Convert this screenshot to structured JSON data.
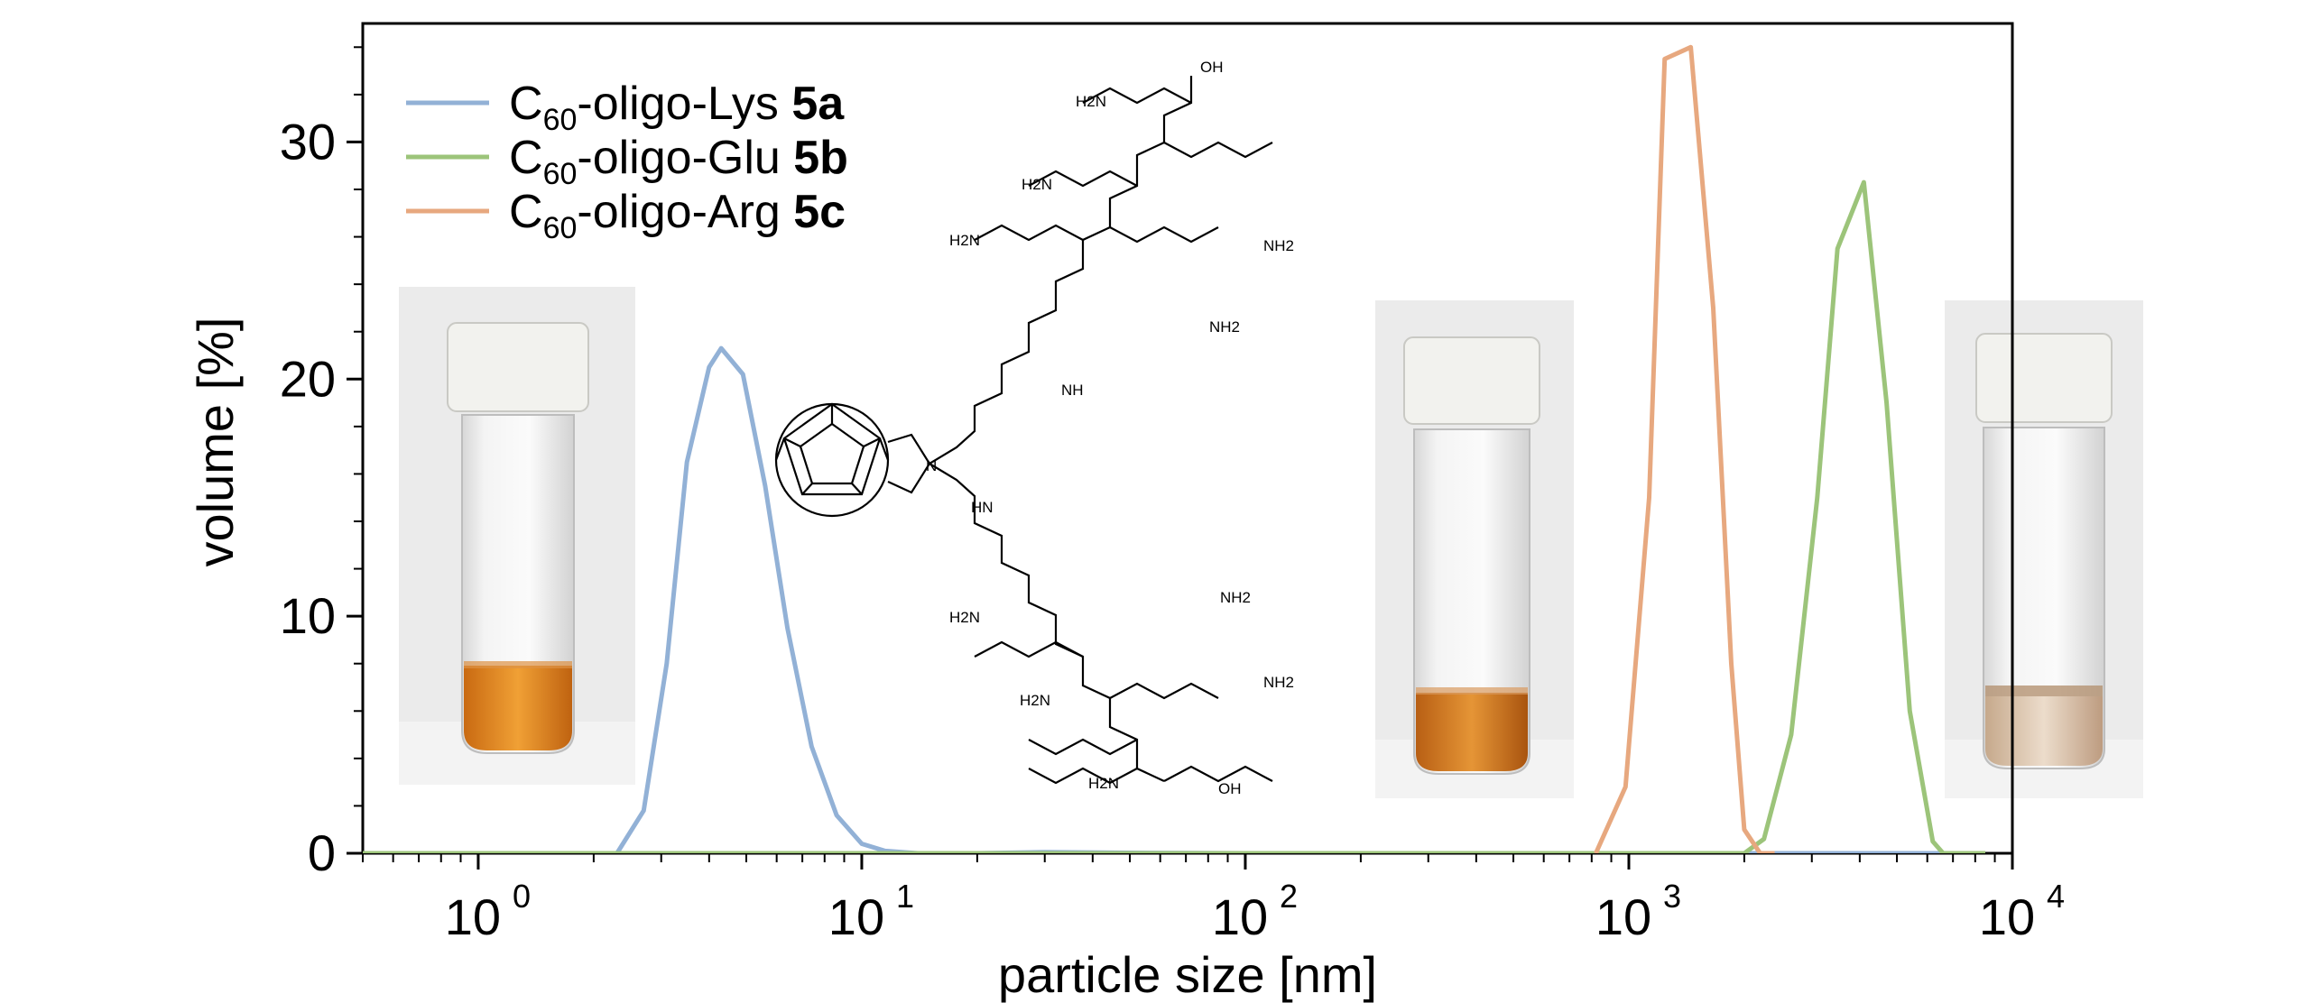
{
  "chart_data": {
    "type": "line",
    "xlabel": "particle size [nm]",
    "ylabel": "volume [%]",
    "xscale": "log",
    "xlim": [
      0.5,
      10000
    ],
    "ylim": [
      0,
      35
    ],
    "x_ticks": [
      {
        "value": 1,
        "base": "10",
        "exp": "0"
      },
      {
        "value": 10,
        "base": "10",
        "exp": "1"
      },
      {
        "value": 100,
        "base": "10",
        "exp": "2"
      },
      {
        "value": 1000,
        "base": "10",
        "exp": "3"
      },
      {
        "value": 10000,
        "base": "10",
        "exp": "4"
      }
    ],
    "y_ticks": [
      0,
      10,
      20,
      30
    ],
    "legend_position": "top-left",
    "series": [
      {
        "name": "C60-oligo-Lys 5a",
        "legend": {
          "prefix": "C",
          "sub": "60",
          "mid": "-oligo-Lys ",
          "bold": "5a"
        },
        "color": "#92b1d6",
        "points": [
          [
            0.5,
            0
          ],
          [
            2.3,
            0
          ],
          [
            2.7,
            1.8
          ],
          [
            3.1,
            8
          ],
          [
            3.5,
            16.5
          ],
          [
            4.0,
            20.5
          ],
          [
            4.3,
            21.3
          ],
          [
            4.9,
            20.2
          ],
          [
            5.6,
            15.5
          ],
          [
            6.4,
            9.5
          ],
          [
            7.4,
            4.5
          ],
          [
            8.6,
            1.6
          ],
          [
            10,
            0.4
          ],
          [
            11.5,
            0.1
          ],
          [
            14,
            0
          ],
          [
            20,
            0
          ],
          [
            30,
            0.05
          ],
          [
            50,
            0.02
          ],
          [
            100,
            0
          ],
          [
            8000,
            0
          ]
        ]
      },
      {
        "name": "C60-oligo-Glu 5b",
        "legend": {
          "prefix": "C",
          "sub": "60",
          "mid": "-oligo-Glu ",
          "bold": "5b"
        },
        "color": "#9cc47a",
        "points": [
          [
            0.5,
            0
          ],
          [
            2000,
            0
          ],
          [
            2250,
            0.6
          ],
          [
            2650,
            5
          ],
          [
            3100,
            15
          ],
          [
            3500,
            25.5
          ],
          [
            4100,
            28.3
          ],
          [
            4700,
            19
          ],
          [
            5400,
            6
          ],
          [
            6200,
            0.5
          ],
          [
            6600,
            0
          ],
          [
            8500,
            0
          ]
        ]
      },
      {
        "name": "C60-oligo-Arg 5c",
        "legend": {
          "prefix": "C",
          "sub": "60",
          "mid": "-oligo-Arg ",
          "bold": "5c"
        },
        "color": "#e7a87f",
        "points": [
          [
            820,
            0
          ],
          [
            980,
            2.8
          ],
          [
            1130,
            15
          ],
          [
            1240,
            33.5
          ],
          [
            1450,
            34
          ],
          [
            1660,
            23
          ],
          [
            1850,
            8
          ],
          [
            2000,
            1.0
          ],
          [
            2200,
            0
          ],
          [
            2400,
            0
          ]
        ]
      }
    ]
  },
  "insets": {
    "molecule_label": "C60-oligo-Lys",
    "chem_labels": [
      "H2N",
      "NH",
      "OH",
      "O",
      "N",
      "NH2",
      "HN"
    ]
  }
}
